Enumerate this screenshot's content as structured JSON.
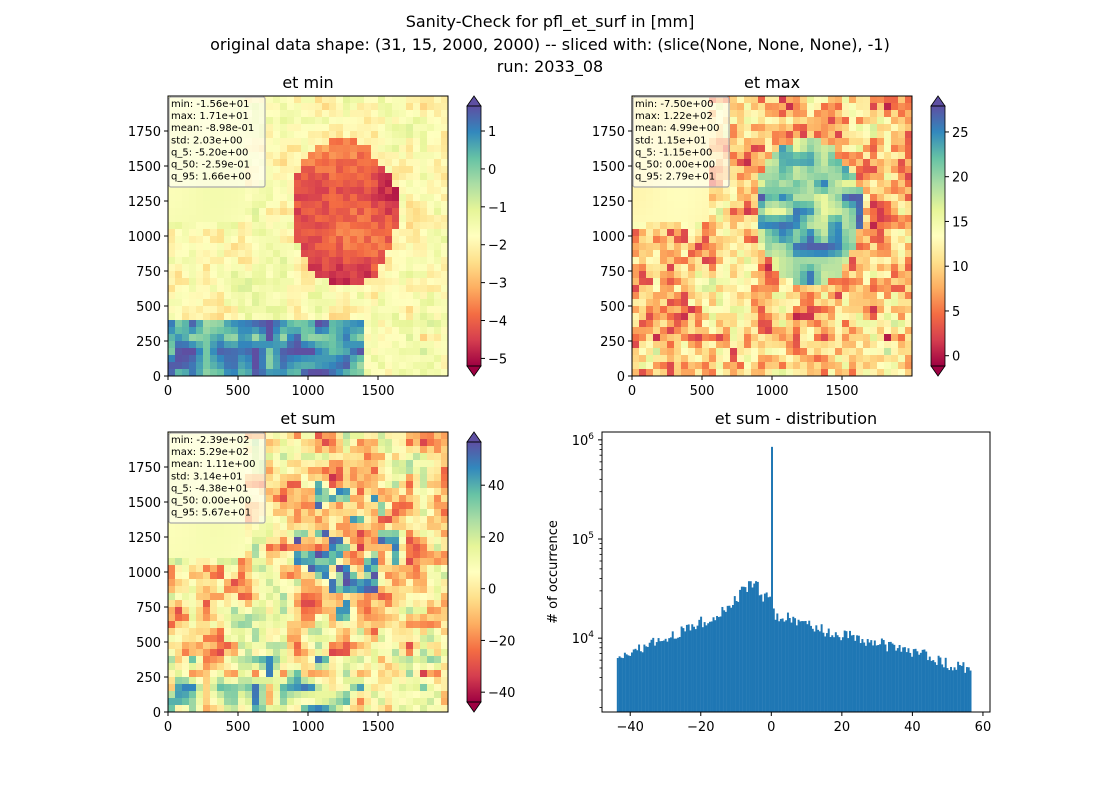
{
  "suptitle": {
    "line1": "Sanity-Check for pfl_et_surf in [mm]",
    "line2": "original data shape: (31, 15, 2000, 2000) -- sliced with: (slice(None, None, None), -1)",
    "line3": "run: 2033_08"
  },
  "chart_data": [
    {
      "type": "heatmap",
      "title": "et min",
      "xlim": [
        0,
        2000
      ],
      "ylim": [
        0,
        2000
      ],
      "xticks": [
        "0",
        "500",
        "1000",
        "1500"
      ],
      "yticks": [
        "0",
        "250",
        "500",
        "750",
        "1000",
        "1250",
        "1500",
        "1750"
      ],
      "colormap": "Spectral",
      "colorbar": {
        "range": [
          -5.2,
          1.66
        ],
        "ticks": [
          "−5",
          "−4",
          "−3",
          "−2",
          "−1",
          "0",
          "1"
        ],
        "extend": "both"
      },
      "stats": [
        "min: -1.56e+01",
        "max: 1.71e+01",
        "mean: -8.98e-01",
        "std: 2.03e+00",
        "q_5: -5.20e+00",
        "q_50: -2.59e-01",
        "q_95: 1.66e+00"
      ]
    },
    {
      "type": "heatmap",
      "title": "et max",
      "xlim": [
        0,
        2000
      ],
      "ylim": [
        0,
        2000
      ],
      "xticks": [
        "0",
        "500",
        "1000",
        "1500"
      ],
      "yticks": [
        "0",
        "250",
        "500",
        "750",
        "1000",
        "1250",
        "1500",
        "1750"
      ],
      "colormap": "Spectral",
      "colorbar": {
        "range": [
          -1.15,
          27.9
        ],
        "ticks": [
          "0",
          "5",
          "10",
          "15",
          "20",
          "25"
        ],
        "extend": "both"
      },
      "stats": [
        "min: -7.50e+00",
        "max: 1.22e+02",
        "mean: 4.99e+00",
        "std: 1.15e+01",
        "q_5: -1.15e+00",
        "q_50: 0.00e+00",
        "q_95: 2.79e+01"
      ]
    },
    {
      "type": "heatmap",
      "title": "et sum",
      "xlim": [
        0,
        2000
      ],
      "ylim": [
        0,
        2000
      ],
      "xticks": [
        "0",
        "500",
        "1000",
        "1500"
      ],
      "yticks": [
        "0",
        "250",
        "500",
        "750",
        "1000",
        "1250",
        "1500",
        "1750"
      ],
      "colormap": "Spectral",
      "colorbar": {
        "range": [
          -43.8,
          56.7
        ],
        "ticks": [
          "−40",
          "−20",
          "0",
          "20",
          "40"
        ],
        "extend": "both"
      },
      "stats": [
        "min: -2.39e+02",
        "max: 5.29e+02",
        "mean: 1.11e+00",
        "std: 3.14e+01",
        "q_5: -4.38e+01",
        "q_50: 0.00e+00",
        "q_95: 5.67e+01"
      ]
    },
    {
      "type": "bar",
      "title": "et sum - distribution",
      "ylabel": "# of occurrence",
      "xlabel": "",
      "xlim": [
        -48,
        62
      ],
      "ylim": [
        1800,
        1200000
      ],
      "yscale": "log",
      "xticks": [
        "−40",
        "−20",
        "0",
        "20",
        "40",
        "60"
      ],
      "yticks": [
        "10^4",
        "10^5",
        "10^6"
      ],
      "bin_range": [
        -43.8,
        56.7
      ],
      "bins": 200,
      "color": "#1f77b4",
      "anchors_x": [
        -43.8,
        -40,
        -35,
        -30,
        -25,
        -20,
        -15,
        -10,
        -7,
        -4,
        -2,
        -1,
        1,
        2,
        5,
        10,
        15,
        20,
        25,
        30,
        35,
        40,
        45,
        50,
        55,
        56.7
      ],
      "anchors_y": [
        5500,
        7000,
        8500,
        10000,
        12000,
        14500,
        18000,
        25000,
        33000,
        33000,
        26000,
        30000,
        17000,
        16000,
        16000,
        14000,
        12000,
        11000,
        10000,
        9000,
        8000,
        7500,
        6500,
        5500,
        5000,
        4500
      ],
      "peak": {
        "x": 0,
        "y": 850000
      }
    }
  ]
}
